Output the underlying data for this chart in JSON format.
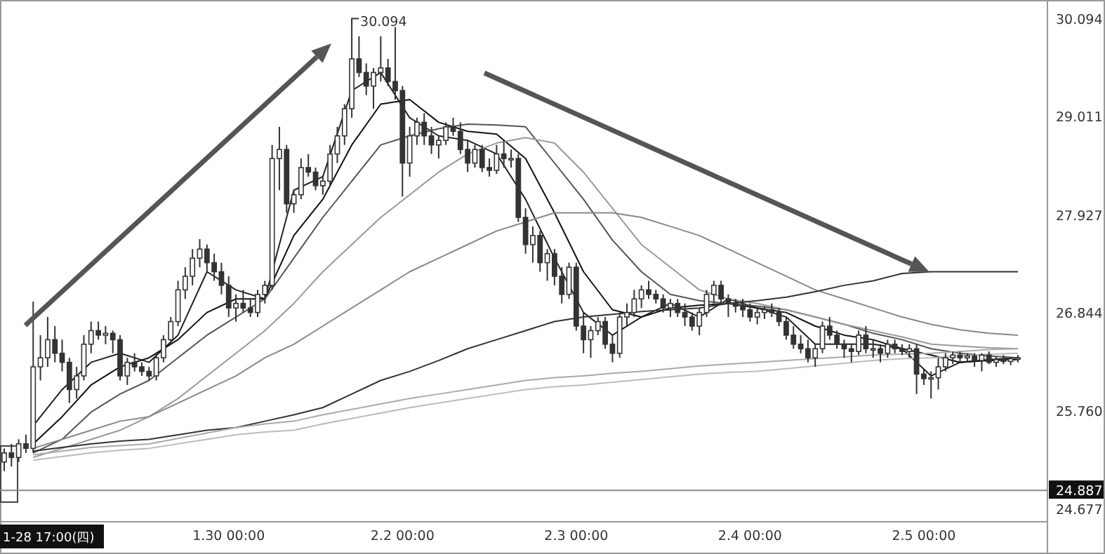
{
  "chart_data": {
    "type": "candlestick",
    "categories": [
      null,
      null,
      null,
      null,
      null,
      null,
      null,
      null,
      null,
      null,
      null,
      null,
      null,
      null,
      null,
      null,
      null,
      null,
      null,
      null,
      null,
      null,
      null,
      null,
      null,
      null,
      null,
      null,
      null,
      null,
      null,
      "1.30 00:00",
      null,
      null,
      null,
      null,
      null,
      null,
      null,
      null,
      null,
      null,
      null,
      null,
      null,
      null,
      null,
      null,
      null,
      null,
      null,
      null,
      null,
      null,
      null,
      "2.2 00:00",
      null,
      null,
      null,
      null,
      null,
      null,
      null,
      null,
      null,
      null,
      null,
      null,
      null,
      null,
      null,
      null,
      null,
      null,
      null,
      null,
      null,
      null,
      null,
      "2.3 00:00",
      null,
      null,
      null,
      null,
      null,
      null,
      null,
      null,
      null,
      null,
      null,
      null,
      null,
      null,
      null,
      null,
      null,
      null,
      null,
      null,
      null,
      null,
      null,
      "2.4 00:00",
      null,
      null,
      null,
      null,
      null,
      null,
      null,
      null,
      null,
      null,
      null,
      null,
      null,
      null,
      null,
      null,
      null,
      null,
      null,
      null,
      null,
      null,
      null,
      "2.5 00:00",
      null,
      null,
      null,
      null,
      null,
      null,
      null,
      null,
      null,
      null,
      null,
      null,
      null
    ],
    "ohlc": [
      [
        25.2,
        25.35,
        25.1,
        25.3
      ],
      [
        25.3,
        25.4,
        25.15,
        25.25
      ],
      [
        25.25,
        25.45,
        25.2,
        25.4
      ],
      [
        25.4,
        25.5,
        25.3,
        25.35
      ],
      [
        25.35,
        26.97,
        25.3,
        26.25
      ],
      [
        26.25,
        26.6,
        26.1,
        26.35
      ],
      [
        26.35,
        26.8,
        26.25,
        26.55
      ],
      [
        26.55,
        26.7,
        26.3,
        26.4
      ],
      [
        26.4,
        26.55,
        26.2,
        26.3
      ],
      [
        26.3,
        26.35,
        25.85,
        26.0
      ],
      [
        26.0,
        26.25,
        25.9,
        26.15
      ],
      [
        26.15,
        26.6,
        26.1,
        26.5
      ],
      [
        26.5,
        26.75,
        26.4,
        26.65
      ],
      [
        26.65,
        26.75,
        26.55,
        26.6
      ],
      [
        26.6,
        26.7,
        26.5,
        26.62
      ],
      [
        26.62,
        26.65,
        26.4,
        26.55
      ],
      [
        26.55,
        26.6,
        26.1,
        26.15
      ],
      [
        26.15,
        26.35,
        26.05,
        26.3
      ],
      [
        26.3,
        26.4,
        26.2,
        26.25
      ],
      [
        26.25,
        26.3,
        26.15,
        26.2
      ],
      [
        26.2,
        26.25,
        26.1,
        26.15
      ],
      [
        26.15,
        26.4,
        26.1,
        26.35
      ],
      [
        26.35,
        26.6,
        26.3,
        26.55
      ],
      [
        26.55,
        26.8,
        26.5,
        26.75
      ],
      [
        26.75,
        27.2,
        26.7,
        27.1
      ],
      [
        27.1,
        27.35,
        27.0,
        27.25
      ],
      [
        27.25,
        27.55,
        27.15,
        27.45
      ],
      [
        27.45,
        27.66,
        27.35,
        27.55
      ],
      [
        27.55,
        27.6,
        27.3,
        27.4
      ],
      [
        27.4,
        27.5,
        27.2,
        27.3
      ],
      [
        27.3,
        27.4,
        27.05,
        27.15
      ],
      [
        27.15,
        27.25,
        26.8,
        26.9
      ],
      [
        26.9,
        27.05,
        26.75,
        26.95
      ],
      [
        26.95,
        27.1,
        26.85,
        26.9
      ],
      [
        26.9,
        27.0,
        26.8,
        26.85
      ],
      [
        26.85,
        27.1,
        26.8,
        27.05
      ],
      [
        27.05,
        27.2,
        26.95,
        27.15
      ],
      [
        27.15,
        28.7,
        27.1,
        28.55
      ],
      [
        28.55,
        28.9,
        28.2,
        28.65
      ],
      [
        28.65,
        28.7,
        27.95,
        28.05
      ],
      [
        28.05,
        28.2,
        27.95,
        28.15
      ],
      [
        28.15,
        28.55,
        28.1,
        28.45
      ],
      [
        28.45,
        28.6,
        28.35,
        28.4
      ],
      [
        28.4,
        28.45,
        28.2,
        28.25
      ],
      [
        28.25,
        28.35,
        28.15,
        28.3
      ],
      [
        28.3,
        28.7,
        28.25,
        28.6
      ],
      [
        28.6,
        28.9,
        28.5,
        28.8
      ],
      [
        28.8,
        29.15,
        28.7,
        29.1
      ],
      [
        29.1,
        30.094,
        29.0,
        29.65
      ],
      [
        29.65,
        29.9,
        29.45,
        29.5
      ],
      [
        29.5,
        29.6,
        29.25,
        29.35
      ],
      [
        29.35,
        29.55,
        29.1,
        29.5
      ],
      [
        29.5,
        29.9,
        29.4,
        29.55
      ],
      [
        29.55,
        29.65,
        29.35,
        29.4
      ],
      [
        29.4,
        30.0,
        29.2,
        29.3
      ],
      [
        29.3,
        29.35,
        28.13,
        28.5
      ],
      [
        28.5,
        28.9,
        28.35,
        28.8
      ],
      [
        28.8,
        29.0,
        28.7,
        28.95
      ],
      [
        28.95,
        29.05,
        28.7,
        28.8
      ],
      [
        28.8,
        28.9,
        28.6,
        28.7
      ],
      [
        28.7,
        28.8,
        28.55,
        28.75
      ],
      [
        28.75,
        28.95,
        28.7,
        28.9
      ],
      [
        28.9,
        29.0,
        28.8,
        28.85
      ],
      [
        28.85,
        28.95,
        28.6,
        28.65
      ],
      [
        28.65,
        28.75,
        28.4,
        28.5
      ],
      [
        28.5,
        28.7,
        28.45,
        28.65
      ],
      [
        28.65,
        28.7,
        28.4,
        28.45
      ],
      [
        28.45,
        28.55,
        28.35,
        28.42
      ],
      [
        28.42,
        28.7,
        28.38,
        28.6
      ],
      [
        28.6,
        28.75,
        28.45,
        28.55
      ],
      [
        28.55,
        28.65,
        28.45,
        28.55
      ],
      [
        28.55,
        28.6,
        27.85,
        27.9
      ],
      [
        27.9,
        28.0,
        27.5,
        27.6
      ],
      [
        27.6,
        27.8,
        27.4,
        27.7
      ],
      [
        27.7,
        27.75,
        27.3,
        27.4
      ],
      [
        27.4,
        27.55,
        27.2,
        27.5
      ],
      [
        27.5,
        27.55,
        27.15,
        27.25
      ],
      [
        27.25,
        27.35,
        26.95,
        27.05
      ],
      [
        27.05,
        27.4,
        27.0,
        27.35
      ],
      [
        27.35,
        27.4,
        26.65,
        26.7
      ],
      [
        26.7,
        26.85,
        26.4,
        26.55
      ],
      [
        26.55,
        26.7,
        26.35,
        26.65
      ],
      [
        26.65,
        26.8,
        26.6,
        26.75
      ],
      [
        26.75,
        26.8,
        26.45,
        26.5
      ],
      [
        26.5,
        26.6,
        26.3,
        26.4
      ],
      [
        26.4,
        26.85,
        26.35,
        26.8
      ],
      [
        26.8,
        26.95,
        26.7,
        26.85
      ],
      [
        26.85,
        27.1,
        26.8,
        27.0
      ],
      [
        27.0,
        27.15,
        26.9,
        27.1
      ],
      [
        27.1,
        27.2,
        27.0,
        27.05
      ],
      [
        27.05,
        27.1,
        26.95,
        27.0
      ],
      [
        27.0,
        27.05,
        26.85,
        26.9
      ],
      [
        26.9,
        27.0,
        26.8,
        26.95
      ],
      [
        26.95,
        27.0,
        26.8,
        26.85
      ],
      [
        26.85,
        26.95,
        26.7,
        26.8
      ],
      [
        26.8,
        26.85,
        26.65,
        26.7
      ],
      [
        26.7,
        26.9,
        26.6,
        26.85
      ],
      [
        26.85,
        27.1,
        26.8,
        27.05
      ],
      [
        27.05,
        27.2,
        26.95,
        27.15
      ],
      [
        27.15,
        27.2,
        26.95,
        27.0
      ],
      [
        27.0,
        27.05,
        26.8,
        26.95
      ],
      [
        26.95,
        27.0,
        26.85,
        26.92
      ],
      [
        26.92,
        27.0,
        26.8,
        26.88
      ],
      [
        26.88,
        26.95,
        26.75,
        26.8
      ],
      [
        26.8,
        26.9,
        26.72,
        26.85
      ],
      [
        26.85,
        26.92,
        26.78,
        26.88
      ],
      [
        26.88,
        26.95,
        26.8,
        26.85
      ],
      [
        26.85,
        26.9,
        26.7,
        26.75
      ],
      [
        26.75,
        26.8,
        26.55,
        26.6
      ],
      [
        26.6,
        26.7,
        26.45,
        26.5
      ],
      [
        26.5,
        26.6,
        26.4,
        26.45
      ],
      [
        26.45,
        26.55,
        26.3,
        26.35
      ],
      [
        26.35,
        26.5,
        26.25,
        26.45
      ],
      [
        26.45,
        26.75,
        26.4,
        26.7
      ],
      [
        26.7,
        26.8,
        26.55,
        26.6
      ],
      [
        26.6,
        26.65,
        26.45,
        26.5
      ],
      [
        26.5,
        26.55,
        26.35,
        26.45
      ],
      [
        26.45,
        26.5,
        26.3,
        26.42
      ],
      [
        26.42,
        26.65,
        26.38,
        26.6
      ],
      [
        26.6,
        26.7,
        26.4,
        26.45
      ],
      [
        26.45,
        26.55,
        26.35,
        26.45
      ],
      [
        26.45,
        26.5,
        26.3,
        26.4
      ],
      [
        26.4,
        26.55,
        26.35,
        26.5
      ],
      [
        26.5,
        26.55,
        26.4,
        26.45
      ],
      [
        26.45,
        26.5,
        26.38,
        26.42
      ],
      [
        26.42,
        26.5,
        26.35,
        26.45
      ],
      [
        26.45,
        26.5,
        25.95,
        26.17
      ],
      [
        26.17,
        26.22,
        26.05,
        26.12
      ],
      [
        26.12,
        26.2,
        25.9,
        26.13
      ],
      [
        26.13,
        26.35,
        26.0,
        26.25
      ],
      [
        26.25,
        26.4,
        26.2,
        26.35
      ],
      [
        26.35,
        26.42,
        26.28,
        26.38
      ],
      [
        26.38,
        26.42,
        26.3,
        26.35
      ],
      [
        26.35,
        26.4,
        26.3,
        26.37
      ],
      [
        26.37,
        26.4,
        26.25,
        26.32
      ],
      [
        26.32,
        26.4,
        26.2,
        26.38
      ],
      [
        26.38,
        26.42,
        26.28,
        26.3
      ],
      [
        26.3,
        26.36,
        26.25,
        26.33
      ],
      [
        26.33,
        26.38,
        26.28,
        26.31
      ],
      [
        26.31,
        26.36,
        26.27,
        26.34
      ],
      [
        26.34,
        26.38,
        26.3,
        26.35
      ]
    ],
    "series": [
      {
        "type": "line",
        "color": "#222222",
        "values": [
          null,
          null,
          null,
          null,
          25.6,
          null,
          null,
          null,
          26.0,
          null,
          null,
          null,
          26.3,
          null,
          null,
          null,
          26.4,
          null,
          null,
          null,
          26.3,
          null,
          null,
          null,
          26.6,
          null,
          null,
          null,
          27.3,
          null,
          null,
          null,
          27.1,
          null,
          null,
          null,
          27.0,
          null,
          null,
          null,
          28.2,
          null,
          null,
          null,
          28.35,
          null,
          null,
          null,
          29.3,
          null,
          null,
          null,
          29.5,
          null,
          null,
          null,
          29.0,
          null,
          null,
          null,
          28.8,
          null,
          null,
          null,
          28.75,
          null,
          null,
          null,
          28.6,
          null,
          null,
          null,
          28.1,
          null,
          null,
          null,
          27.45,
          null,
          null,
          null,
          26.85,
          null,
          null,
          null,
          26.6,
          null,
          null,
          null,
          26.8,
          null,
          null,
          null,
          26.95,
          null,
          null,
          null,
          26.8,
          null,
          null,
          null,
          27.0,
          null,
          null,
          null,
          26.9,
          null,
          null,
          null,
          26.8,
          null,
          null,
          null,
          26.5,
          null,
          null,
          null,
          26.5,
          null,
          null,
          null,
          26.5,
          null,
          null,
          null,
          26.45,
          null,
          null,
          null,
          26.15,
          null,
          null,
          null,
          26.3,
          null,
          null,
          null,
          26.33,
          null,
          null,
          null,
          26.35
        ]
      },
      {
        "type": "line",
        "color": "#111111",
        "values": [
          null,
          null,
          null,
          null,
          25.4,
          null,
          null,
          null,
          25.7,
          null,
          null,
          null,
          26.05,
          null,
          null,
          null,
          26.25,
          null,
          null,
          null,
          26.35,
          null,
          null,
          null,
          26.55,
          null,
          null,
          null,
          26.85,
          null,
          null,
          null,
          27.0,
          null,
          null,
          null,
          27.0,
          null,
          null,
          null,
          27.7,
          null,
          null,
          null,
          28.1,
          null,
          null,
          null,
          28.7,
          null,
          null,
          null,
          29.15,
          null,
          null,
          null,
          29.2,
          null,
          null,
          null,
          28.95,
          null,
          null,
          null,
          28.85,
          null,
          null,
          null,
          28.82,
          null,
          null,
          null,
          28.55,
          null,
          null,
          null,
          27.95,
          null,
          null,
          null,
          27.3,
          null,
          null,
          null,
          26.88,
          null,
          null,
          null,
          26.8,
          null,
          null,
          null,
          26.9,
          null,
          null,
          null,
          26.93,
          null,
          null,
          null,
          26.95,
          null,
          null,
          null,
          26.9,
          null,
          null,
          null,
          26.85,
          null,
          null,
          null,
          26.7,
          null,
          null,
          null,
          26.6,
          null,
          null,
          null,
          26.55,
          null,
          null,
          null,
          26.45,
          null,
          null,
          null,
          26.38,
          null,
          null,
          null,
          26.3,
          null,
          null,
          null,
          26.32,
          null,
          null,
          null,
          26.33
        ]
      },
      {
        "type": "line",
        "color": "#555555",
        "values": [
          null,
          null,
          null,
          null,
          25.3,
          null,
          null,
          null,
          25.45,
          null,
          null,
          null,
          25.75,
          null,
          null,
          null,
          25.95,
          null,
          null,
          null,
          26.1,
          null,
          null,
          null,
          26.35,
          null,
          null,
          null,
          26.6,
          null,
          null,
          null,
          26.8,
          null,
          null,
          null,
          27.0,
          null,
          null,
          null,
          27.45,
          null,
          null,
          null,
          27.9,
          null,
          null,
          null,
          28.3,
          null,
          null,
          null,
          28.7,
          null,
          null,
          null,
          28.8,
          null,
          null,
          null,
          28.88,
          null,
          null,
          null,
          28.93,
          null,
          null,
          null,
          28.92,
          null,
          null,
          null,
          28.9,
          null,
          null,
          null,
          28.5,
          null,
          null,
          null,
          28.1,
          null,
          null,
          null,
          27.65,
          null,
          null,
          null,
          27.3,
          null,
          null,
          null,
          27.05,
          null,
          null,
          null,
          26.98,
          null,
          null,
          null,
          26.95,
          null,
          null,
          null,
          26.92,
          null,
          null,
          null,
          26.88,
          null,
          null,
          null,
          26.8,
          null,
          null,
          null,
          26.72,
          null,
          null,
          null,
          26.62,
          null,
          null,
          null,
          26.55,
          null,
          null,
          null,
          26.45,
          null,
          null,
          null,
          26.4,
          null,
          null,
          null,
          26.37,
          null,
          null,
          null,
          26.35
        ]
      },
      {
        "type": "line",
        "color": "#999999",
        "values": [
          null,
          null,
          null,
          null,
          25.25,
          null,
          null,
          null,
          25.35,
          null,
          null,
          null,
          25.45,
          null,
          null,
          null,
          25.55,
          null,
          null,
          null,
          25.7,
          null,
          null,
          null,
          25.9,
          null,
          null,
          null,
          26.15,
          null,
          null,
          null,
          26.4,
          null,
          null,
          null,
          26.65,
          null,
          null,
          null,
          26.95,
          null,
          null,
          null,
          27.3,
          null,
          null,
          null,
          27.6,
          null,
          null,
          null,
          27.9,
          null,
          null,
          null,
          28.15,
          null,
          null,
          null,
          28.4,
          null,
          null,
          null,
          28.6,
          null,
          null,
          null,
          28.72,
          null,
          null,
          null,
          28.78,
          null,
          null,
          null,
          28.72,
          null,
          null,
          null,
          28.4,
          null,
          null,
          null,
          28.0,
          null,
          null,
          null,
          27.6,
          null,
          null,
          null,
          27.35,
          null,
          null,
          null,
          27.1,
          null,
          null,
          null,
          27.0,
          null,
          null,
          null,
          26.95,
          null,
          null,
          null,
          26.88,
          null,
          null,
          null,
          26.8,
          null,
          null,
          null,
          26.72,
          null,
          null,
          null,
          26.65,
          null,
          null,
          null,
          26.58,
          null,
          null,
          null,
          26.5,
          null,
          null,
          null,
          26.48,
          null,
          null,
          null,
          26.46,
          null,
          null,
          null,
          26.45
        ]
      },
      {
        "type": "line",
        "color": "#888888",
        "values": [
          null,
          null,
          null,
          null,
          25.35,
          null,
          null,
          null,
          25.45,
          null,
          null,
          null,
          25.55,
          null,
          null,
          null,
          25.65,
          null,
          null,
          null,
          25.7,
          null,
          null,
          null,
          25.85,
          null,
          null,
          null,
          26.0,
          null,
          null,
          null,
          26.15,
          null,
          null,
          null,
          26.35,
          null,
          null,
          null,
          26.5,
          null,
          null,
          null,
          26.7,
          null,
          null,
          null,
          26.9,
          null,
          null,
          null,
          27.1,
          null,
          null,
          null,
          27.3,
          null,
          null,
          null,
          27.45,
          null,
          null,
          null,
          27.6,
          null,
          null,
          null,
          27.75,
          null,
          null,
          null,
          27.85,
          null,
          null,
          null,
          27.95,
          null,
          null,
          null,
          27.95,
          null,
          null,
          null,
          27.95,
          null,
          null,
          null,
          27.9,
          null,
          null,
          null,
          27.8,
          null,
          null,
          null,
          27.7,
          null,
          null,
          null,
          27.55,
          null,
          null,
          null,
          27.4,
          null,
          null,
          null,
          27.25,
          null,
          null,
          null,
          27.1,
          null,
          null,
          null,
          27.0,
          null,
          null,
          null,
          26.9,
          null,
          null,
          null,
          26.8,
          null,
          null,
          null,
          26.72,
          null,
          null,
          null,
          26.66,
          null,
          null,
          null,
          26.62,
          null,
          null,
          null,
          26.6
        ]
      },
      {
        "type": "line",
        "color": "#333333",
        "values": [
          null,
          null,
          null,
          null,
          25.32,
          null,
          null,
          null,
          25.36,
          null,
          null,
          null,
          25.4,
          null,
          null,
          null,
          25.43,
          null,
          null,
          null,
          25.45,
          null,
          null,
          null,
          25.5,
          null,
          null,
          null,
          25.55,
          null,
          null,
          null,
          25.58,
          null,
          null,
          null,
          25.65,
          null,
          null,
          null,
          25.72,
          null,
          null,
          null,
          25.8,
          null,
          null,
          null,
          25.95,
          null,
          null,
          null,
          26.1,
          null,
          null,
          null,
          26.2,
          null,
          null,
          null,
          26.32,
          null,
          null,
          null,
          26.45,
          null,
          null,
          null,
          26.55,
          null,
          null,
          null,
          26.65,
          null,
          null,
          null,
          26.75,
          null,
          null,
          null,
          26.8,
          null,
          null,
          null,
          26.83,
          null,
          null,
          null,
          26.86,
          null,
          null,
          null,
          26.88,
          null,
          null,
          null,
          26.9,
          null,
          null,
          null,
          26.95,
          null,
          null,
          null,
          26.98,
          null,
          null,
          null,
          27.02,
          null,
          null,
          null,
          27.08,
          null,
          null,
          null,
          27.15,
          null,
          null,
          null,
          27.2,
          null,
          null,
          null,
          27.28,
          null,
          null,
          null,
          27.3,
          null,
          null,
          null,
          27.3,
          null,
          null,
          null,
          27.3,
          null,
          null,
          null,
          27.3
        ]
      },
      {
        "type": "line",
        "color": "#aaaaaa",
        "values": [
          null,
          null,
          null,
          null,
          25.28,
          null,
          null,
          null,
          25.32,
          null,
          null,
          null,
          25.36,
          null,
          null,
          null,
          25.38,
          null,
          null,
          null,
          25.4,
          null,
          null,
          null,
          25.46,
          null,
          null,
          null,
          25.52,
          null,
          null,
          null,
          25.58,
          null,
          null,
          null,
          25.62,
          null,
          null,
          null,
          25.65,
          null,
          null,
          null,
          25.72,
          null,
          null,
          null,
          25.78,
          null,
          null,
          null,
          25.84,
          null,
          null,
          null,
          25.9,
          null,
          null,
          null,
          25.95,
          null,
          null,
          null,
          26.0,
          null,
          null,
          null,
          26.05,
          null,
          null,
          null,
          26.1,
          null,
          null,
          null,
          26.13,
          null,
          null,
          null,
          26.15,
          null,
          null,
          null,
          26.18,
          null,
          null,
          null,
          26.2,
          null,
          null,
          null,
          26.23,
          null,
          null,
          null,
          26.26,
          null,
          null,
          null,
          26.28,
          null,
          null,
          null,
          26.3,
          null,
          null,
          null,
          26.32,
          null,
          null,
          null,
          26.34,
          null,
          null,
          null,
          26.36,
          null,
          null,
          null,
          26.38,
          null,
          null,
          null,
          26.39,
          null,
          null,
          null,
          26.4,
          null,
          null,
          null,
          26.42,
          null,
          null,
          null,
          26.44,
          null,
          null,
          null,
          26.45
        ]
      },
      {
        "type": "line",
        "color": "#bbbbbb",
        "values": [
          null,
          null,
          null,
          null,
          25.22,
          null,
          null,
          null,
          25.26,
          null,
          null,
          null,
          25.3,
          null,
          null,
          null,
          25.33,
          null,
          null,
          null,
          25.35,
          null,
          null,
          null,
          25.4,
          null,
          null,
          null,
          25.45,
          null,
          null,
          null,
          25.5,
          null,
          null,
          null,
          25.53,
          null,
          null,
          null,
          25.55,
          null,
          null,
          null,
          25.62,
          null,
          null,
          null,
          25.68,
          null,
          null,
          null,
          25.74,
          null,
          null,
          null,
          25.8,
          null,
          null,
          null,
          25.85,
          null,
          null,
          null,
          25.9,
          null,
          null,
          null,
          25.95,
          null,
          null,
          null,
          26.0,
          null,
          null,
          null,
          26.03,
          null,
          null,
          null,
          26.05,
          null,
          null,
          null,
          26.08,
          null,
          null,
          null,
          26.11,
          null,
          null,
          null,
          26.14,
          null,
          null,
          null,
          26.17,
          null,
          null,
          null,
          26.19,
          null,
          null,
          null,
          26.2,
          null,
          null,
          null,
          26.23,
          null,
          null,
          null,
          26.26,
          null,
          null,
          null,
          26.29,
          null,
          null,
          null,
          26.32,
          null,
          null,
          null,
          26.34,
          null,
          null,
          null,
          26.35,
          null,
          null,
          null,
          26.37,
          null,
          null,
          null,
          26.39,
          null,
          null,
          null,
          26.4
        ]
      }
    ],
    "ylim": [
      24.54,
      30.3
    ],
    "yticks": [
      24.677,
      {
        "value": 25.76,
        "label": "25.760"
      },
      26.844,
      27.927,
      29.011,
      30.094
    ],
    "ref_lines": [
      {
        "axis": "y",
        "value": 24.887,
        "label": "24.887",
        "color": "#888888"
      }
    ],
    "annotations": [
      "30.094",
      "1-28 17:00(四)"
    ]
  }
}
